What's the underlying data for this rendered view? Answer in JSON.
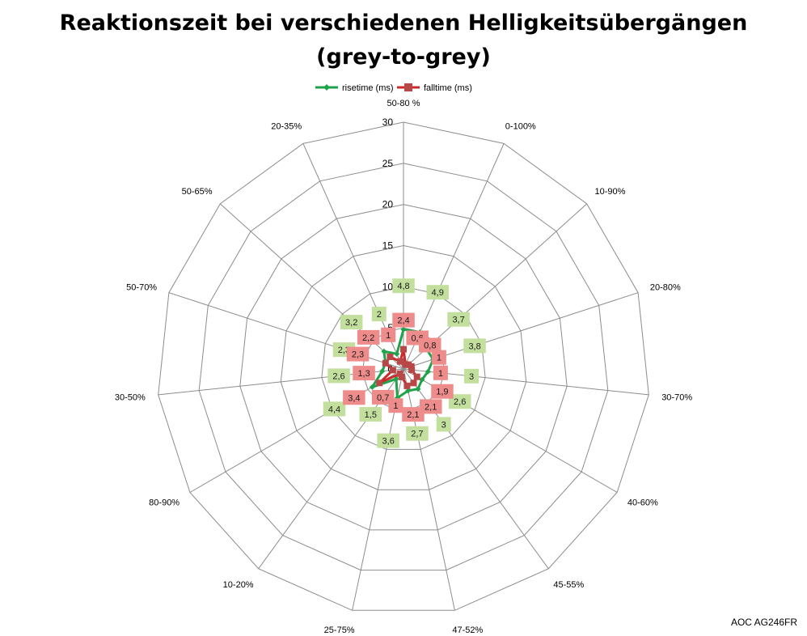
{
  "chart_data": {
    "type": "radar",
    "title_lines": [
      "Reaktionszeit bei verschiedenen Helligkeitsübergängen",
      "(grey-to-grey)"
    ],
    "categories": [
      "50-80 %",
      "0-100%",
      "10-90%",
      "20-80%",
      "30-70%",
      "40-60%",
      "45-55%",
      "47-52%",
      "25-75%",
      "10-20%",
      "80-90%",
      "30-50%",
      "50-70%",
      "50-65%",
      "20-35%"
    ],
    "r_ticks": [
      "0",
      "5",
      "10",
      "15",
      "20",
      "25",
      "30"
    ],
    "rlim": [
      0,
      30
    ],
    "grid": true,
    "legend_position": "top",
    "series": [
      {
        "name": "risetime (ms)",
        "color": "#1fa34a",
        "marker": "diamond",
        "values": [
          4.8,
          4.9,
          3.7,
          3.8,
          3,
          2.6,
          3,
          2.7,
          3.6,
          1.5,
          4.4,
          2.6,
          2.3,
          3.2,
          2
        ],
        "label_texts": [
          "4,8",
          "4,9",
          "3,7",
          "3,8",
          "3",
          "2,6",
          "3",
          "2,7",
          "3,6",
          "1,5",
          "4,4",
          "2,6",
          "2,3",
          "3,2",
          "2"
        ],
        "label_bg": "#c3df9e"
      },
      {
        "name": "falltime (ms)",
        "color": "#cc2a2a",
        "marker_color": "#b84848",
        "marker": "square",
        "values": [
          2.4,
          0.6,
          0.8,
          1,
          1,
          1.9,
          2.1,
          2.1,
          1,
          0.7,
          3.4,
          1.3,
          2.3,
          2.2,
          1
        ],
        "label_texts": [
          "2,4",
          "0,6",
          "0,8",
          "1",
          "1",
          "1,9",
          "2,1",
          "2,1",
          "1",
          "0,7",
          "3,4",
          "1,3",
          "2,3",
          "2,2",
          "1"
        ],
        "label_bg": "#ee8c8c"
      }
    ]
  },
  "footer_note": "AOC AG246FR"
}
